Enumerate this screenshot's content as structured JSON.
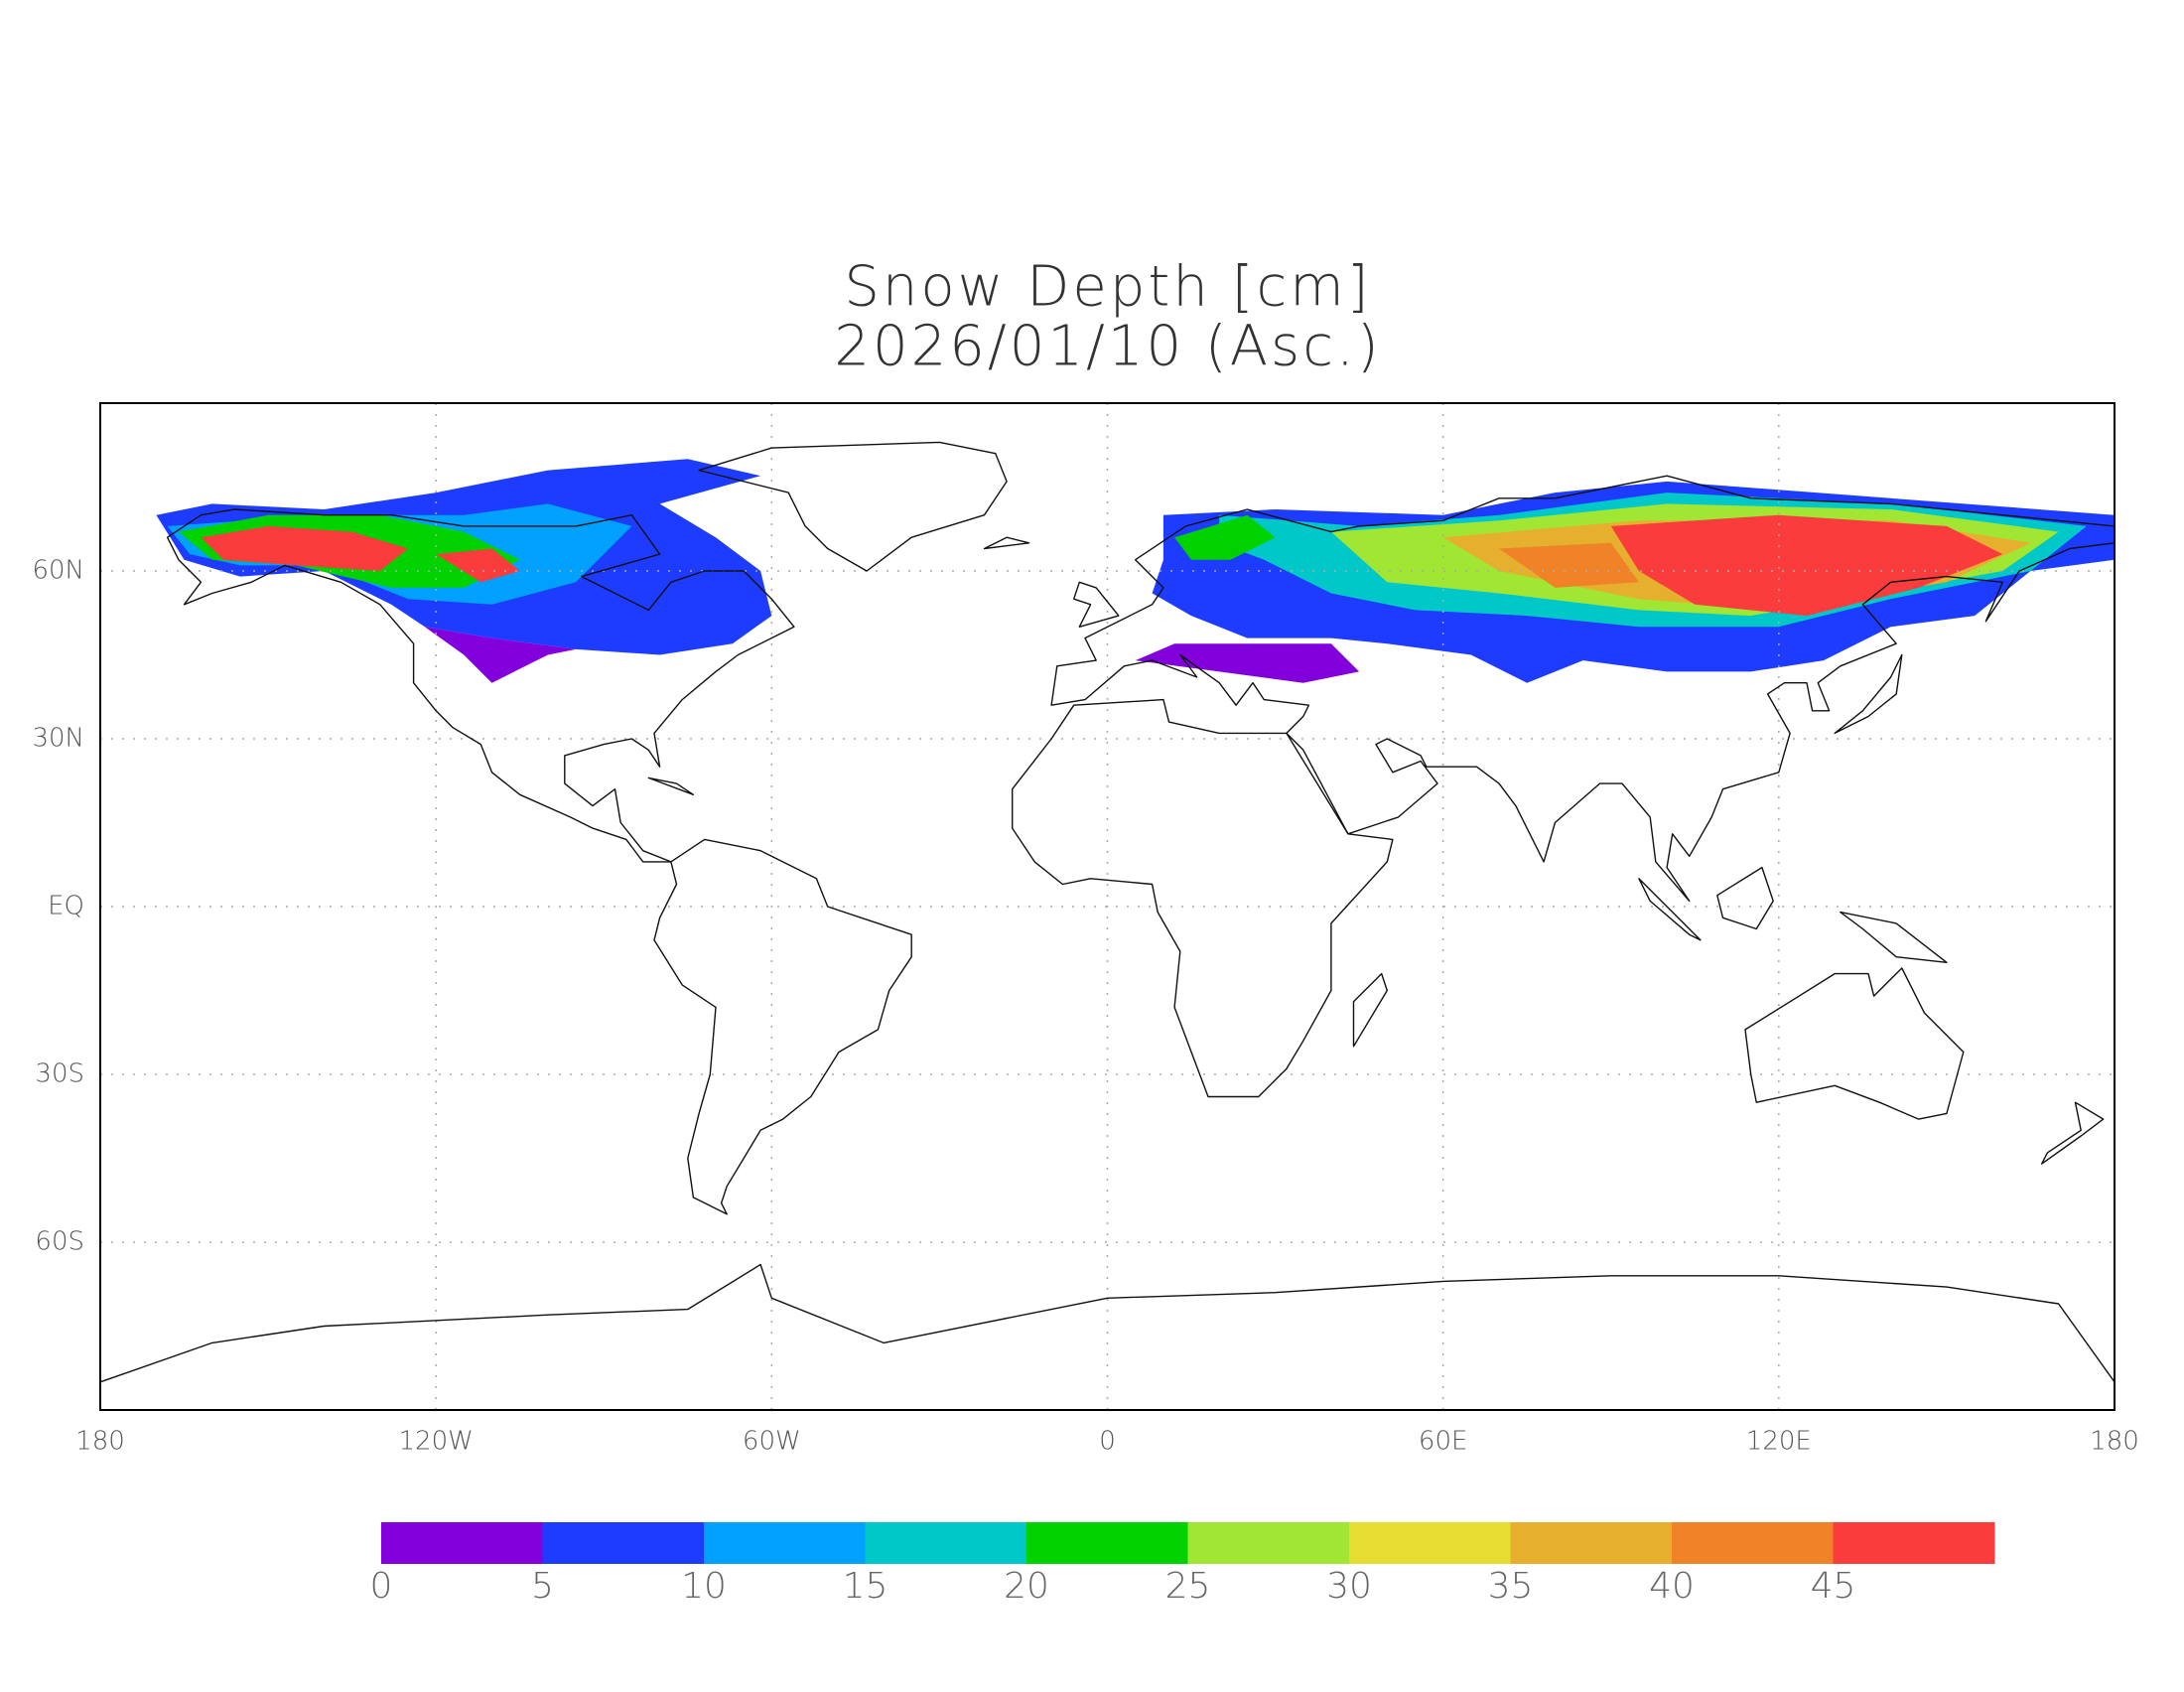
{
  "title": "Snow Depth [cm]",
  "subtitle": "2026/01/10 (Asc.)",
  "map": {
    "xlim": [
      -180,
      180
    ],
    "ylim": [
      -90,
      90
    ],
    "xticks": [
      {
        "value": -180,
        "label": "180"
      },
      {
        "value": -120,
        "label": "120W"
      },
      {
        "value": -60,
        "label": "60W"
      },
      0,
      {
        "value": 60,
        "label": "60E"
      },
      {
        "value": 120,
        "label": "120E"
      },
      {
        "value": 180,
        "label": "180"
      }
    ],
    "yticks": [
      {
        "value": 60,
        "label": "60N"
      },
      {
        "value": 30,
        "label": "30N"
      },
      {
        "value": 0,
        "label": "EQ"
      },
      {
        "value": -30,
        "label": "30S"
      },
      {
        "value": -60,
        "label": "60S"
      }
    ],
    "grid": true
  },
  "colorbar": {
    "ticks": [
      0,
      5,
      10,
      15,
      20,
      25,
      30,
      35,
      40,
      45
    ],
    "colors": [
      "#8200dc",
      "#1e3cff",
      "#00a0ff",
      "#00c8c8",
      "#00d200",
      "#a0e632",
      "#e6dc32",
      "#e6af2d",
      "#f08228",
      "#fa3c3c"
    ]
  }
}
